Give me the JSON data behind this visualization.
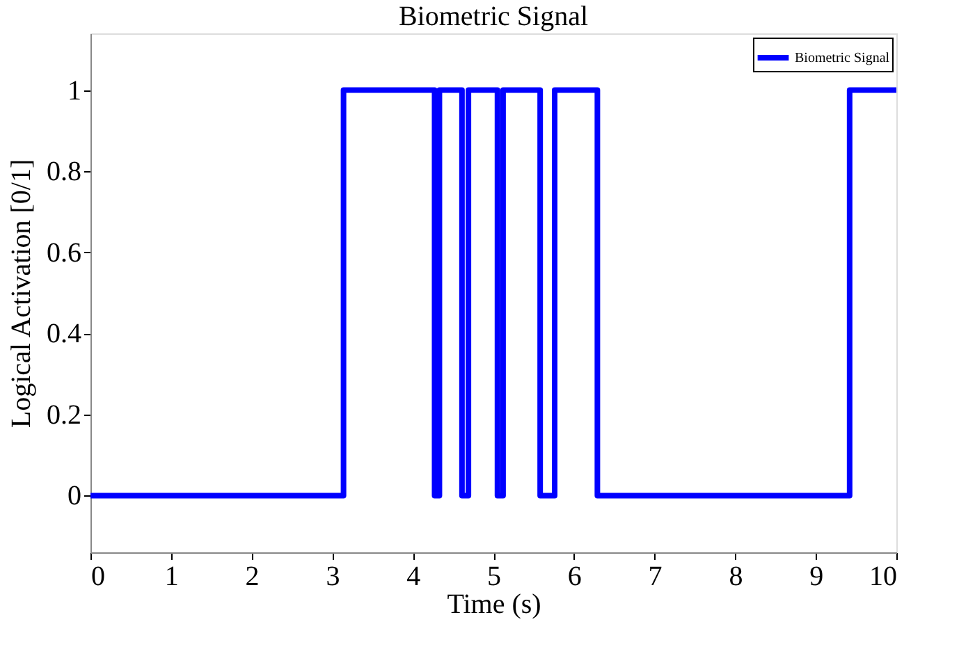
{
  "chart_data": {
    "type": "step",
    "title": "Biometric Signal",
    "xlabel": "Time (s)",
    "ylabel": "Logical Activation [0/1]",
    "x": [
      0,
      3.14,
      4.27,
      4.33,
      4.61,
      4.69,
      5.05,
      5.12,
      5.58,
      5.76,
      6.29,
      9.42,
      10
    ],
    "series": [
      {
        "name": "Biometric Signal",
        "color": "#0000ff",
        "values": [
          0,
          1,
          0,
          1,
          0,
          1,
          0,
          1,
          0,
          1,
          0,
          1,
          1
        ]
      }
    ],
    "xlim": [
      0,
      10
    ],
    "xticks": [
      0,
      1,
      2,
      3,
      4,
      5,
      6,
      7,
      8,
      9,
      10
    ],
    "ylim": [
      -0.14,
      1.14
    ],
    "yticks": [
      0,
      0.2,
      0.4,
      0.6,
      0.8,
      1
    ],
    "grid": false,
    "legend": "top right",
    "line_style": "solid",
    "marker": "none"
  }
}
